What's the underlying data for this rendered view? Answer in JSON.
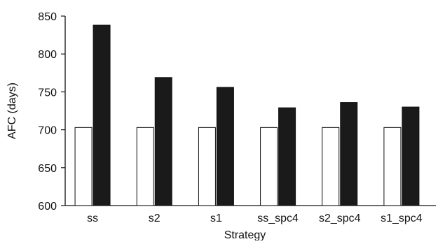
{
  "chart_data": {
    "type": "bar",
    "title": "",
    "xlabel": "Strategy",
    "ylabel": "AFC (days)",
    "categories": [
      "ss",
      "s2",
      "s1",
      "ss_spc4",
      "s2_spc4",
      "s1_spc4"
    ],
    "series": [
      {
        "values": [
          703,
          703,
          703,
          703,
          703,
          703
        ],
        "color": "#ffffff"
      },
      {
        "values": [
          838,
          769,
          756,
          729,
          736,
          730
        ],
        "color": "#1a1a1a"
      }
    ],
    "ylim": [
      600,
      850
    ],
    "yticks": [
      600,
      650,
      700,
      750,
      800,
      850
    ],
    "grid": false,
    "legend": "none"
  }
}
